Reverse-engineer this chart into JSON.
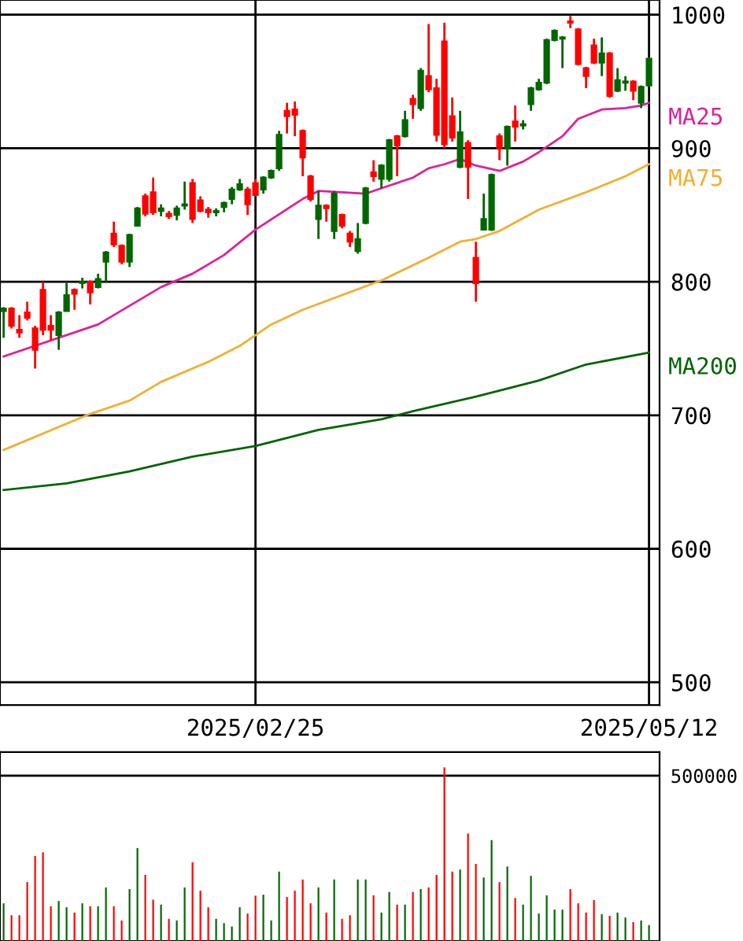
{
  "chart_data": [
    {
      "type": "candlestick",
      "categories": [
        null,
        null,
        null,
        null,
        null,
        null,
        null,
        null,
        null,
        null,
        null,
        null,
        null,
        null,
        null,
        null,
        null,
        null,
        null,
        null,
        null,
        null,
        null,
        null,
        null,
        null,
        null,
        null,
        null,
        null,
        null,
        null,
        "2025/02/25",
        null,
        null,
        null,
        null,
        null,
        null,
        null,
        null,
        null,
        null,
        null,
        null,
        null,
        null,
        null,
        null,
        null,
        null,
        null,
        null,
        null,
        null,
        null,
        null,
        null,
        null,
        null,
        null,
        null,
        null,
        null,
        null,
        null,
        null,
        null,
        null,
        null,
        null,
        null,
        null,
        null,
        null,
        null,
        null,
        null,
        null,
        null,
        null,
        null,
        "2025/05/12"
      ],
      "ohlc": [
        [
          778,
          781,
          758,
          780
        ],
        [
          780,
          781,
          765,
          767
        ],
        [
          764,
          775,
          758,
          762
        ],
        [
          777,
          785,
          771,
          773
        ],
        [
          765,
          767,
          735,
          749
        ],
        [
          794,
          800,
          760,
          764
        ],
        [
          767,
          775,
          756,
          764
        ],
        [
          760,
          778,
          749,
          777
        ],
        [
          778,
          800,
          778,
          790
        ],
        [
          794,
          795,
          779,
          791
        ],
        [
          799,
          803,
          795,
          800
        ],
        [
          800,
          801,
          783,
          792
        ],
        [
          796,
          806,
          795,
          802
        ],
        [
          815,
          823,
          800,
          822
        ],
        [
          836,
          845,
          826,
          828
        ],
        [
          827,
          828,
          813,
          815
        ],
        [
          815,
          836,
          811,
          835
        ],
        [
          842,
          856,
          842,
          855
        ],
        [
          864,
          866,
          849,
          851
        ],
        [
          867,
          878,
          850,
          852
        ],
        [
          853,
          858,
          849,
          855
        ],
        [
          851,
          853,
          847,
          849
        ],
        [
          850,
          857,
          846,
          855
        ],
        [
          857,
          875,
          854,
          858
        ],
        [
          874,
          877,
          844,
          847
        ],
        [
          861,
          864,
          852,
          853
        ],
        [
          854,
          856,
          848,
          852
        ],
        [
          852,
          855,
          849,
          853
        ],
        [
          856,
          860,
          852,
          859
        ],
        [
          862,
          871,
          858,
          869
        ],
        [
          869,
          877,
          868,
          873
        ],
        [
          869,
          871,
          850,
          858
        ],
        [
          874,
          877,
          864,
          865
        ],
        [
          869,
          879,
          866,
          878
        ],
        [
          878,
          884,
          877,
          883
        ],
        [
          885,
          913,
          883,
          910
        ],
        [
          928,
          934,
          911,
          924
        ],
        [
          929,
          935,
          909,
          925
        ],
        [
          913,
          914,
          879,
          893
        ],
        [
          879,
          880,
          860,
          862
        ],
        [
          847,
          868,
          832,
          857
        ],
        [
          857,
          858,
          845,
          855
        ],
        [
          838,
          868,
          832,
          866
        ],
        [
          850,
          851,
          840,
          842
        ],
        [
          836,
          838,
          826,
          830
        ],
        [
          823,
          844,
          821,
          832
        ],
        [
          844,
          871,
          843,
          870
        ],
        [
          882,
          891,
          875,
          879
        ],
        [
          877,
          888,
          870,
          887
        ],
        [
          877,
          907,
          875,
          906
        ],
        [
          909,
          910,
          879,
          902
        ],
        [
          909,
          928,
          908,
          921
        ],
        [
          937,
          940,
          922,
          933
        ],
        [
          930,
          960,
          928,
          958
        ],
        [
          954,
          993,
          942,
          944
        ],
        [
          945,
          952,
          905,
          910
        ],
        [
          980,
          994,
          900,
          903
        ],
        [
          924,
          938,
          905,
          908
        ],
        [
          886,
          928,
          885,
          912
        ],
        [
          904,
          906,
          862,
          886
        ],
        [
          818,
          830,
          785,
          799
        ],
        [
          839,
          866,
          839,
          847
        ],
        [
          839,
          881,
          838,
          880
        ],
        [
          909,
          911,
          891,
          900
        ],
        [
          900,
          917,
          887,
          916
        ],
        [
          920,
          932,
          905,
          916
        ],
        [
          917,
          921,
          914,
          918
        ],
        [
          933,
          946,
          928,
          945
        ],
        [
          944,
          952,
          943,
          949
        ],
        [
          949,
          982,
          948,
          981
        ],
        [
          981,
          989,
          980,
          988
        ],
        [
          982,
          984,
          960,
          983
        ],
        [
          995,
          999,
          990,
          994
        ],
        [
          989,
          990,
          962,
          963
        ],
        [
          960,
          961,
          945,
          954
        ],
        [
          977,
          982,
          963,
          964
        ],
        [
          964,
          983,
          954,
          971
        ],
        [
          971,
          972,
          938,
          939
        ],
        [
          943,
          960,
          942,
          951
        ],
        [
          949,
          954,
          943,
          950
        ],
        [
          950,
          951,
          936,
          943
        ],
        [
          934,
          947,
          930,
          946
        ],
        [
          947,
          968,
          946,
          967
        ]
      ],
      "colors": [
        "#006600",
        "#ff0000",
        "#ff0000",
        "#ff0000",
        "#ff0000",
        "#ff0000",
        "#ff0000",
        "#006600",
        "#006600",
        "#ff0000",
        "#006600",
        "#ff0000",
        "#006600",
        "#006600",
        "#ff0000",
        "#ff0000",
        "#006600",
        "#006600",
        "#ff0000",
        "#ff0000",
        "#006600",
        "#ff0000",
        "#006600",
        "#006600",
        "#ff0000",
        "#ff0000",
        "#ff0000",
        "#006600",
        "#006600",
        "#006600",
        "#006600",
        "#ff0000",
        "#ff0000",
        "#006600",
        "#006600",
        "#006600",
        "#ff0000",
        "#ff0000",
        "#ff0000",
        "#ff0000",
        "#006600",
        "#ff0000",
        "#006600",
        "#ff0000",
        "#ff0000",
        "#006600",
        "#006600",
        "#ff0000",
        "#006600",
        "#006600",
        "#ff0000",
        "#006600",
        "#ff0000",
        "#006600",
        "#ff0000",
        "#ff0000",
        "#ff0000",
        "#ff0000",
        "#006600",
        "#ff0000",
        "#ff0000",
        "#006600",
        "#006600",
        "#ff0000",
        "#006600",
        "#ff0000",
        "#006600",
        "#006600",
        "#006600",
        "#006600",
        "#006600",
        "#006600",
        "#ff0000",
        "#ff0000",
        "#ff0000",
        "#ff0000",
        "#006600",
        "#ff0000",
        "#006600",
        "#006600",
        "#ff0000",
        "#006600",
        "#006600"
      ],
      "series": [
        {
          "type": "line",
          "name": "MA25",
          "color": "#e0209a",
          "values": [
            744,
            null,
            null,
            null,
            null,
            null,
            null,
            null,
            null,
            null,
            764,
            null,
            768,
            null,
            null,
            null,
            782,
            null,
            null,
            null,
            796,
            null,
            null,
            null,
            806,
            null,
            null,
            null,
            820,
            null,
            null,
            null,
            839,
            null,
            null,
            null,
            null,
            null,
            862,
            null,
            868,
            null,
            null,
            null,
            null,
            null,
            866,
            null,
            870,
            null,
            null,
            null,
            878,
            null,
            885,
            null,
            888,
            null,
            892,
            null,
            887,
            null,
            null,
            883,
            null,
            null,
            890,
            null,
            897,
            null,
            null,
            909,
            null,
            922,
            null,
            null,
            929,
            null,
            null,
            930,
            null,
            932,
            934
          ]
        },
        {
          "type": "line",
          "name": "MA75",
          "color": "#f0b030",
          "values": [
            674,
            null,
            null,
            null,
            null,
            null,
            null,
            null,
            null,
            null,
            null,
            701,
            null,
            null,
            null,
            null,
            711,
            null,
            null,
            null,
            725,
            null,
            null,
            null,
            null,
            null,
            740,
            null,
            null,
            null,
            752,
            null,
            null,
            null,
            768,
            null,
            null,
            null,
            779,
            null,
            null,
            null,
            null,
            null,
            null,
            null,
            null,
            null,
            801,
            null,
            null,
            null,
            null,
            null,
            818,
            null,
            null,
            null,
            830,
            null,
            832,
            null,
            null,
            838,
            null,
            null,
            null,
            null,
            854,
            null,
            null,
            null,
            null,
            null,
            867,
            null,
            null,
            null,
            null,
            879,
            null,
            null,
            888
          ]
        },
        {
          "type": "line",
          "name": "MA200",
          "color": "#006400",
          "values": [
            644,
            null,
            null,
            null,
            null,
            null,
            null,
            null,
            649,
            null,
            null,
            null,
            null,
            null,
            null,
            null,
            658,
            null,
            null,
            null,
            null,
            null,
            null,
            null,
            669,
            null,
            null,
            null,
            null,
            null,
            null,
            null,
            677,
            null,
            null,
            null,
            null,
            null,
            null,
            null,
            689,
            null,
            null,
            null,
            null,
            null,
            null,
            null,
            697,
            null,
            null,
            null,
            703,
            null,
            null,
            null,
            null,
            null,
            null,
            null,
            714,
            null,
            null,
            null,
            null,
            null,
            null,
            null,
            726,
            null,
            null,
            null,
            null,
            null,
            738,
            null,
            null,
            null,
            null,
            null,
            null,
            null,
            747
          ]
        }
      ],
      "ylim": [
        483,
        1011
      ],
      "yticks": [
        500,
        600,
        700,
        800,
        900,
        1000
      ],
      "grid": true
    },
    {
      "type": "bar",
      "categories": [
        null,
        null,
        null,
        null,
        null,
        null,
        null,
        null,
        null,
        null,
        null,
        null,
        null,
        null,
        null,
        null,
        null,
        null,
        null,
        null,
        null,
        null,
        null,
        null,
        null,
        null,
        null,
        null,
        null,
        null,
        null,
        null,
        "2025/02/25",
        null,
        null,
        null,
        null,
        null,
        null,
        null,
        null,
        null,
        null,
        null,
        null,
        null,
        null,
        null,
        null,
        null,
        null,
        null,
        null,
        null,
        null,
        null,
        null,
        null,
        null,
        null,
        null,
        null,
        null,
        null,
        null,
        null,
        null,
        null,
        null,
        null,
        null,
        null,
        null,
        null,
        null,
        null,
        null,
        null,
        null,
        null,
        null,
        null,
        "2025/05/12"
      ],
      "values": [
        114000,
        78000,
        78000,
        178000,
        257000,
        268000,
        105000,
        121000,
        102000,
        86000,
        114000,
        105000,
        105000,
        162000,
        105000,
        62000,
        157000,
        281000,
        200000,
        125000,
        110000,
        67000,
        62000,
        162000,
        238000,
        152000,
        102000,
        67000,
        54000,
        44000,
        102000,
        83000,
        137000,
        140000,
        62000,
        210000,
        133000,
        152000,
        186000,
        114000,
        162000,
        86000,
        186000,
        67000,
        78000,
        186000,
        186000,
        138000,
        86000,
        148000,
        110000,
        110000,
        148000,
        157000,
        162000,
        200000,
        525000,
        210000,
        216000,
        325000,
        233000,
        192000,
        305000,
        178000,
        225000,
        130000,
        110000,
        197000,
        83000,
        138000,
        95000,
        95000,
        157000,
        114000,
        86000,
        124000,
        81000,
        76000,
        86000,
        71000,
        57000,
        62000,
        48000
      ],
      "colors": [
        "#006600",
        "#ff0000",
        "#ff0000",
        "#ff0000",
        "#ff0000",
        "#ff0000",
        "#ff0000",
        "#006600",
        "#006600",
        "#ff0000",
        "#006600",
        "#ff0000",
        "#006600",
        "#006600",
        "#ff0000",
        "#ff0000",
        "#006600",
        "#006600",
        "#ff0000",
        "#ff0000",
        "#006600",
        "#ff0000",
        "#006600",
        "#006600",
        "#ff0000",
        "#ff0000",
        "#ff0000",
        "#006600",
        "#006600",
        "#006600",
        "#006600",
        "#ff0000",
        "#ff0000",
        "#006600",
        "#006600",
        "#006600",
        "#ff0000",
        "#ff0000",
        "#ff0000",
        "#ff0000",
        "#006600",
        "#ff0000",
        "#006600",
        "#ff0000",
        "#ff0000",
        "#006600",
        "#006600",
        "#ff0000",
        "#006600",
        "#006600",
        "#ff0000",
        "#006600",
        "#ff0000",
        "#006600",
        "#ff0000",
        "#ff0000",
        "#ff0000",
        "#ff0000",
        "#006600",
        "#ff0000",
        "#ff0000",
        "#006600",
        "#006600",
        "#ff0000",
        "#006600",
        "#ff0000",
        "#006600",
        "#006600",
        "#006600",
        "#006600",
        "#006600",
        "#006600",
        "#ff0000",
        "#ff0000",
        "#ff0000",
        "#ff0000",
        "#006600",
        "#ff0000",
        "#006600",
        "#006600",
        "#ff0000",
        "#006600",
        "#006600"
      ],
      "ylim": [
        0,
        571000
      ],
      "yticks": [
        500000
      ],
      "grid": "y",
      "tick_labels": "y"
    }
  ]
}
